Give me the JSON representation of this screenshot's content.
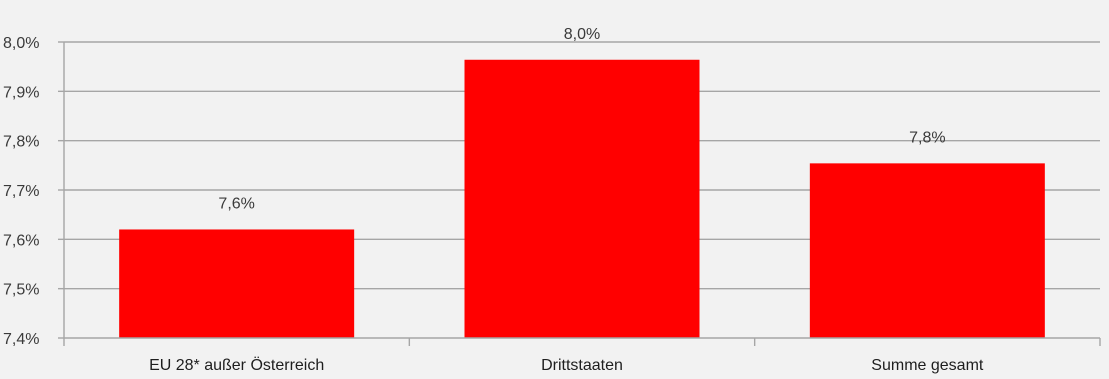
{
  "chart_data": {
    "type": "bar",
    "categories": [
      "EU 28* außer Österreich",
      "Drittstaaten",
      "Summe gesamt"
    ],
    "values": [
      7.62,
      7.964,
      7.754
    ],
    "data_labels": [
      "7,6%",
      "8,0%",
      "7,8%"
    ],
    "ylim": [
      7.4,
      8.0
    ],
    "yticks": [
      7.4,
      7.5,
      7.6,
      7.7,
      7.8,
      7.9,
      8.0
    ],
    "ytick_labels": [
      "7,4%",
      "7,5%",
      "7,6%",
      "7,7%",
      "7,8%",
      "7,9%",
      "8,0%"
    ],
    "title": "",
    "xlabel": "",
    "ylabel": "",
    "grid": true,
    "colors": {
      "bar": "#ff0000",
      "grid": "#a6a6a6",
      "background": "#f2f2f2"
    }
  }
}
